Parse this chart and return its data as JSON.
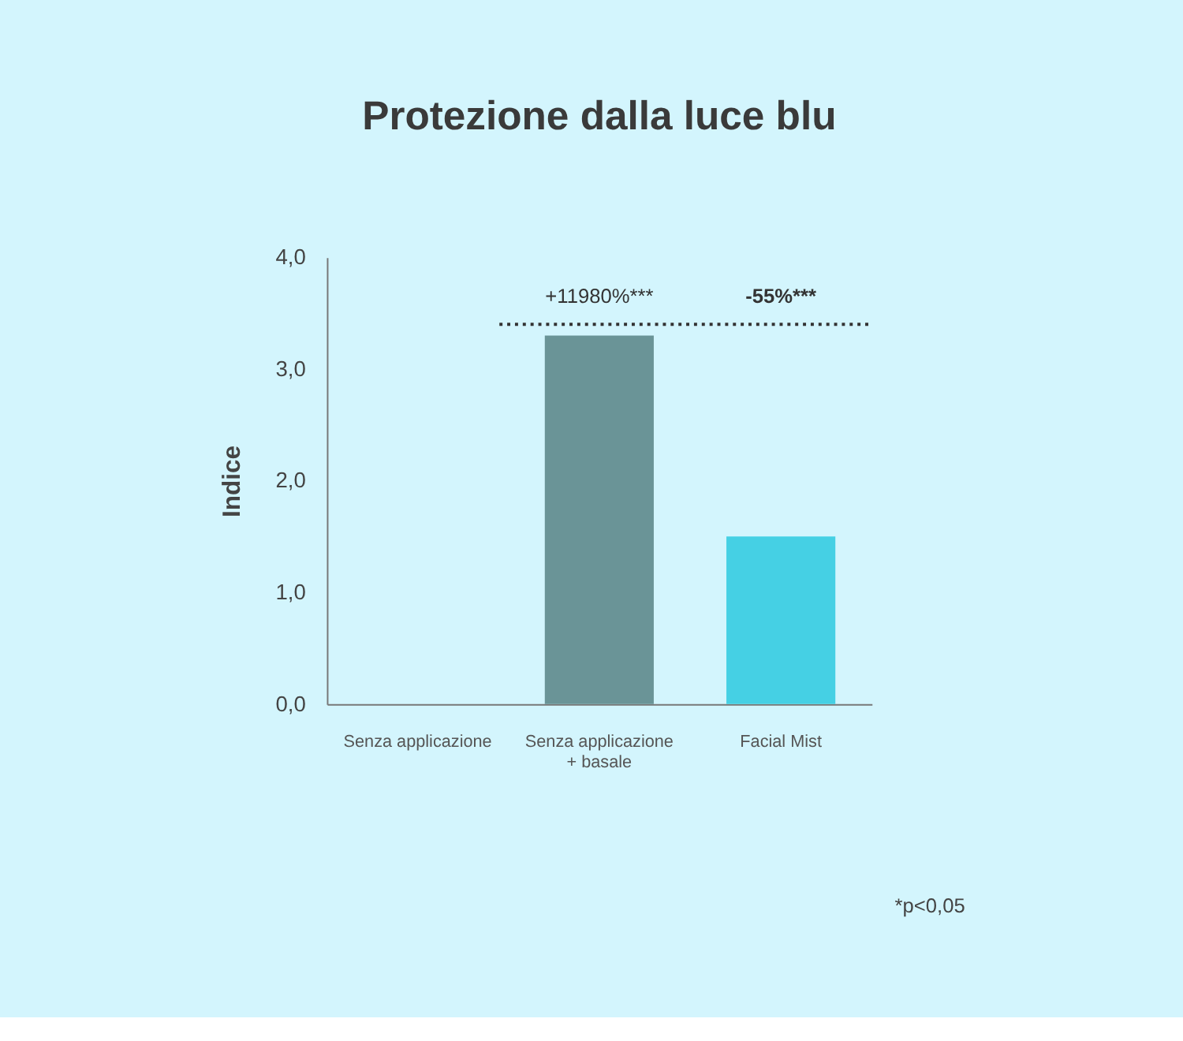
{
  "chart_data": {
    "type": "bar",
    "title": "Protezione dalla luce blu",
    "ylabel": "Indice",
    "categories": [
      "Senza applicazione",
      "Senza applicazione + basale",
      "Facial Mist"
    ],
    "values": [
      0,
      3.3,
      1.5
    ],
    "colors": [
      "#6a9497",
      "#6a9497",
      "#45d0e4"
    ],
    "ylim": [
      0,
      4
    ],
    "yticks": [
      {
        "value": 0,
        "label": "0,0"
      },
      {
        "value": 1,
        "label": "1,0"
      },
      {
        "value": 2,
        "label": "2,0"
      },
      {
        "value": 3,
        "label": "3,0"
      },
      {
        "value": 4,
        "label": "4,0"
      }
    ],
    "grid": false,
    "ref_lines": [
      {
        "axis": "y",
        "value": 3.4,
        "color": "#333333",
        "line_style": "dotted"
      }
    ],
    "annotations": [
      {
        "text": "+11980%***",
        "x": "Senza applicazione + basale",
        "y": 3.4
      },
      {
        "text": "-55%***",
        "x": "Facial Mist",
        "y": 3.4
      },
      "*p<0,05"
    ]
  }
}
